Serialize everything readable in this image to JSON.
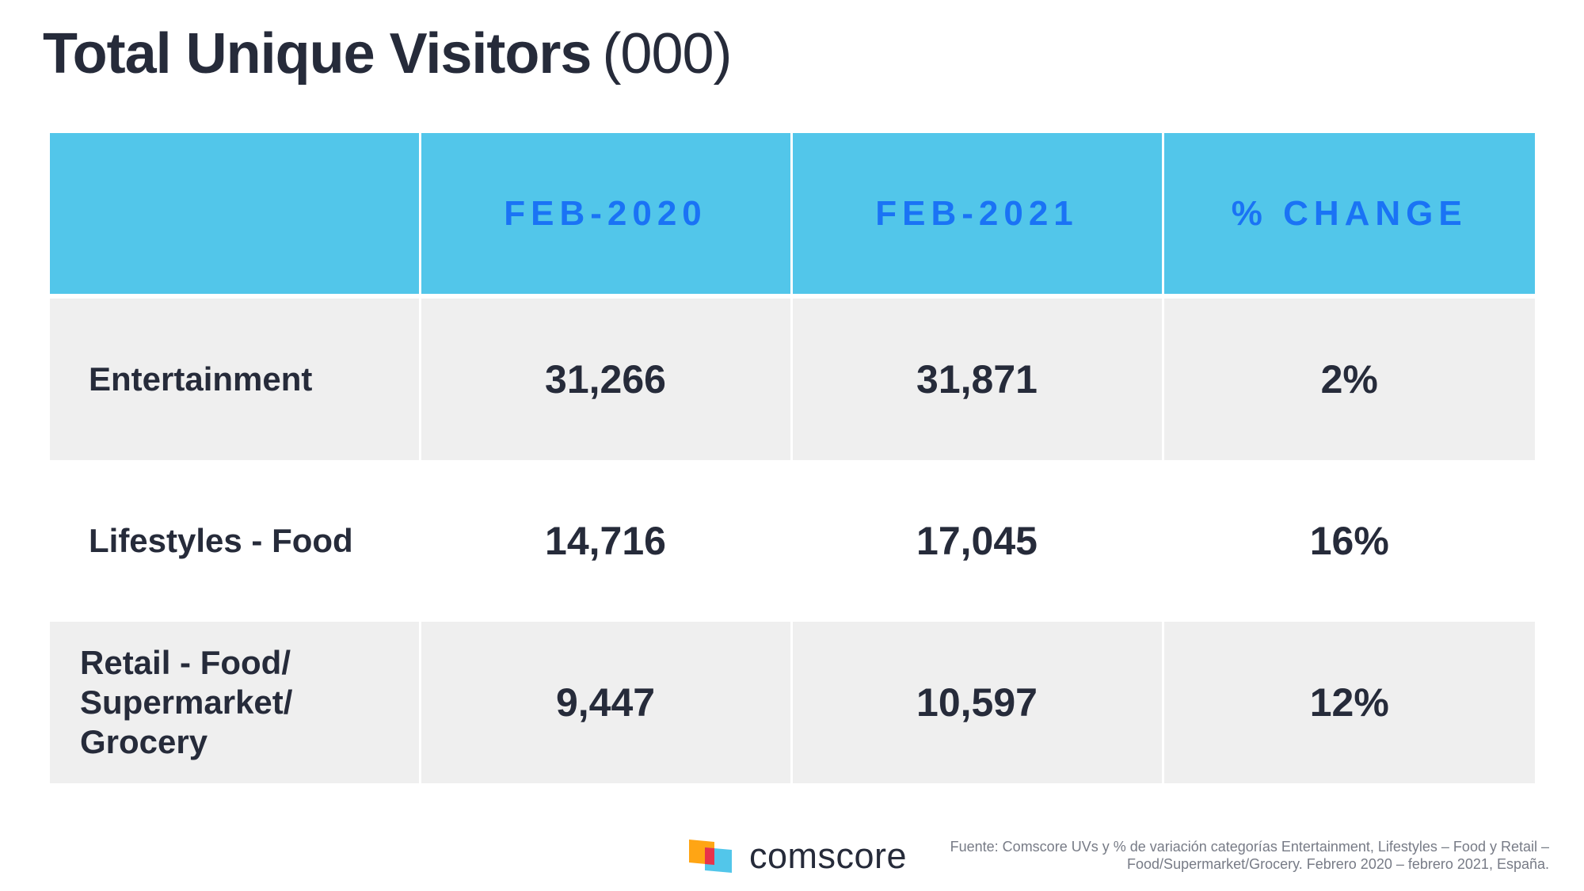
{
  "title": {
    "main": "Total Unique Visitors",
    "unit": "(000)"
  },
  "chart_data": {
    "type": "table",
    "columns": [
      "",
      "FEB-2020",
      "FEB-2021",
      "% CHANGE"
    ],
    "rows": [
      {
        "label": "Entertainment",
        "feb_2020": "31,266",
        "feb_2021": "31,871",
        "change": "2%"
      },
      {
        "label": "Lifestyles - Food",
        "feb_2020": "14,716",
        "feb_2021": "17,045",
        "change": "16%"
      },
      {
        "label": "Retail - Food/ Supermarket/ Grocery",
        "feb_2020": "9,447",
        "feb_2021": "10,597",
        "change": "12%"
      }
    ]
  },
  "logo": {
    "icon": "comscore-logo-icon",
    "text": "comscore",
    "colors": [
      "#ffa514",
      "#e8334a",
      "#52c6ea"
    ]
  },
  "source": "Fuente: Comscore UVs y % de variación categorías Entertainment, Lifestyles – Food y Retail – Food/Supermarket/Grocery. Febrero 2020 – febrero 2021, España.",
  "colors": {
    "header_bg": "#52c6ea",
    "header_text": "#1a73f5",
    "row_shade": "#efefef",
    "text": "#262b3a"
  }
}
